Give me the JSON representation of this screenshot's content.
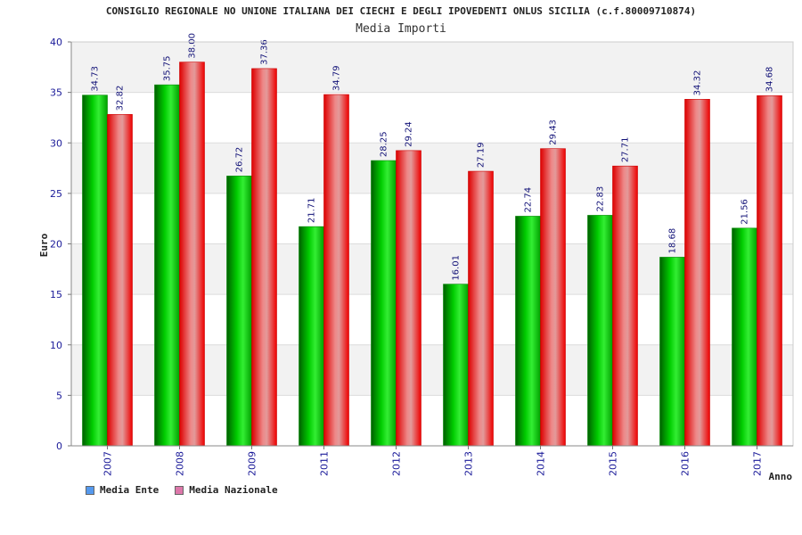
{
  "chart_data": {
    "type": "bar",
    "title": "CONSIGLIO REGIONALE NO UNIONE ITALIANA DEI CIECHI E DEGLI IPOVEDENTI ONLUS SICILIA (c.f.80009710874)",
    "subtitle": "Media Importi",
    "xlabel": "Anno",
    "ylabel": "Euro",
    "ylim": [
      0,
      40
    ],
    "yticks": [
      0,
      5,
      10,
      15,
      20,
      25,
      30,
      35,
      40
    ],
    "categories": [
      "2007",
      "2008",
      "2009",
      "2011",
      "2012",
      "2013",
      "2014",
      "2015",
      "2016",
      "2017"
    ],
    "series": [
      {
        "name": "Media Ente",
        "values": [
          34.73,
          35.75,
          26.72,
          21.71,
          28.25,
          16.01,
          22.74,
          22.83,
          18.68,
          21.56
        ]
      },
      {
        "name": "Media Nazionale",
        "values": [
          32.82,
          38.0,
          37.36,
          34.79,
          29.24,
          27.19,
          29.43,
          27.71,
          34.32,
          34.68
        ]
      }
    ],
    "data_labels": [
      [
        "34.73",
        "35.75",
        "26.72",
        "21.71",
        "28.25",
        "16.01",
        "22.74",
        "22.83",
        "18.68",
        "21.56"
      ],
      [
        "32.82",
        "38.00",
        "37.36",
        "34.79",
        "29.24",
        "27.19",
        "29.43",
        "27.71",
        "34.32",
        "34.68"
      ]
    ],
    "bar_colors": [
      "#00aa00",
      "#ee1111"
    ],
    "legend_swatch_colors": [
      "#5599ee",
      "#dd77aa"
    ],
    "grid": true,
    "grid_band_color": "#f2f2f2",
    "legend_position": "bottom-left"
  }
}
